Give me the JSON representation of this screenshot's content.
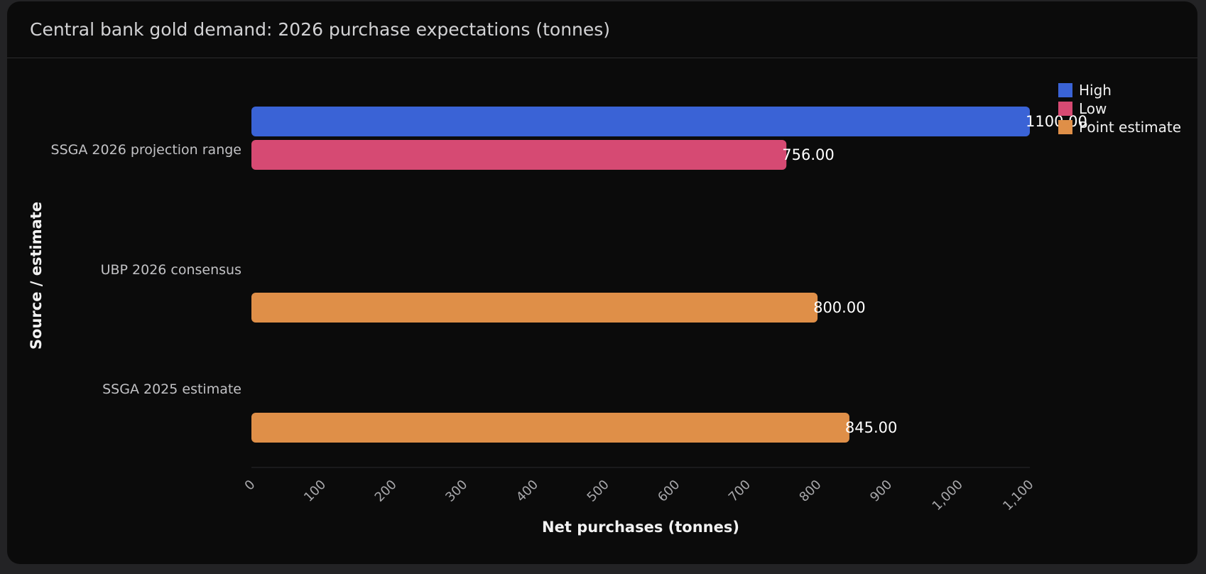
{
  "card": {
    "title": "Central bank gold demand: 2026 purchase expectations (tonnes)"
  },
  "chart_data": {
    "type": "bar",
    "orientation": "horizontal",
    "title": "Central bank gold demand: 2026 purchase expectations (tonnes)",
    "xlabel": "Net purchases (tonnes)",
    "ylabel": "Source / estimate",
    "xlim": [
      0,
      1100
    ],
    "x_ticks": [
      "0",
      "100",
      "200",
      "300",
      "400",
      "500",
      "600",
      "700",
      "800",
      "900",
      "1,000",
      "1,100"
    ],
    "categories": [
      "SSGA 2026 projection range",
      "UBP 2026 consensus",
      "SSGA 2025 estimate"
    ],
    "series": [
      {
        "name": "High",
        "color": "#3a63d6",
        "values": [
          1100,
          null,
          null
        ]
      },
      {
        "name": "Low",
        "color": "#d64a73",
        "values": [
          756,
          null,
          null
        ]
      },
      {
        "name": "Point estimate",
        "color": "#df8f48",
        "values": [
          null,
          800,
          845
        ]
      }
    ],
    "value_labels": [
      "1100.00",
      "756.00",
      "800.00",
      "845.00"
    ],
    "legend_position": "top-right",
    "grid": false
  }
}
